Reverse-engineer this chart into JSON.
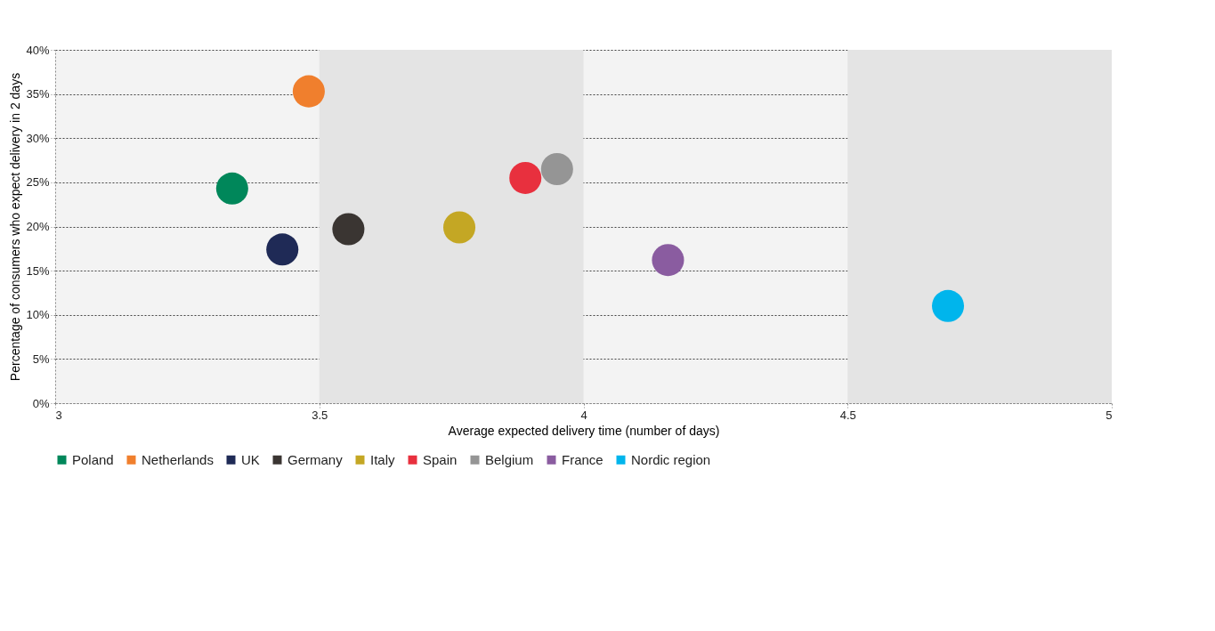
{
  "chart_data": {
    "type": "scatter",
    "xlabel": "Average expected delivery time (number of days)",
    "ylabel": "Percentage of consumers who expect delivery in 2 days",
    "xlim": [
      3,
      5
    ],
    "xticks": [
      3,
      3.5,
      4,
      4.5,
      5
    ],
    "ylim": [
      0,
      40
    ],
    "yticks": [
      {
        "value": 0,
        "label": "0%"
      },
      {
        "value": 5,
        "label": "5%"
      },
      {
        "value": 10,
        "label": "10%"
      },
      {
        "value": 15,
        "label": "15%"
      },
      {
        "value": 20,
        "label": "20%"
      },
      {
        "value": 25,
        "label": "25%"
      },
      {
        "value": 30,
        "label": "30%"
      },
      {
        "value": 35,
        "label": "35%"
      },
      {
        "value": 40,
        "label": "40%"
      }
    ],
    "grid": "y",
    "legend": "bottom",
    "marker": "circle",
    "bands": [
      {
        "axis": "x",
        "from": 3.5,
        "to": 4,
        "color": "#e4e4e4"
      },
      {
        "axis": "x",
        "from": 4.5,
        "to": 5,
        "color": "#e4e4e4"
      }
    ],
    "series": [
      {
        "name": "Poland",
        "color": "#00875a",
        "x": [
          3.335
        ],
        "values": [
          24.3
        ]
      },
      {
        "name": "Netherlands",
        "color": "#f07f2d",
        "x": [
          3.48
        ],
        "values": [
          35.3
        ]
      },
      {
        "name": "UK",
        "color": "#1f2a56",
        "x": [
          3.43
        ],
        "values": [
          17.4
        ]
      },
      {
        "name": "Germany",
        "color": "#3a3532",
        "x": [
          3.555
        ],
        "values": [
          19.7
        ]
      },
      {
        "name": "Italy",
        "color": "#c4a724",
        "x": [
          3.765
        ],
        "values": [
          19.9
        ]
      },
      {
        "name": "Spain",
        "color": "#e8303e",
        "x": [
          3.89
        ],
        "values": [
          25.5
        ]
      },
      {
        "name": "Belgium",
        "color": "#959595",
        "x": [
          3.95
        ],
        "values": [
          26.5
        ]
      },
      {
        "name": "France",
        "color": "#8a5ca0",
        "x": [
          4.16
        ],
        "values": [
          16.2
        ]
      },
      {
        "name": "Nordic region",
        "color": "#00b5ec",
        "x": [
          4.69
        ],
        "values": [
          11.0
        ]
      }
    ]
  }
}
